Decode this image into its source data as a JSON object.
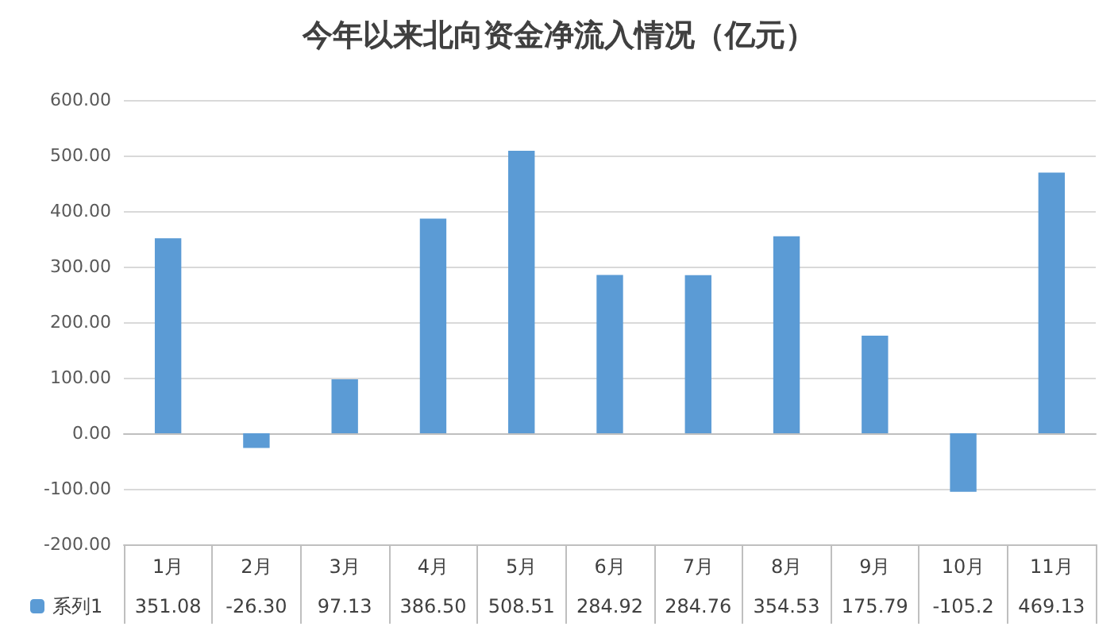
{
  "chart_data": {
    "type": "bar",
    "title": "今年以来北向资金净流入情况（亿元）",
    "categories": [
      "1月",
      "2月",
      "3月",
      "4月",
      "5月",
      "6月",
      "7月",
      "8月",
      "9月",
      "10月",
      "11月"
    ],
    "series": [
      {
        "name": "系列1",
        "color": "#5b9bd5",
        "values": [
          351.08,
          -26.3,
          97.13,
          386.5,
          508.51,
          284.92,
          284.76,
          354.53,
          175.79,
          -105.2,
          469.13
        ],
        "value_labels": [
          "351.08",
          "-26.30",
          "97.13",
          "386.50",
          "508.51",
          "284.92",
          "284.76",
          "354.53",
          "175.79",
          "-105.2",
          "469.13"
        ]
      }
    ],
    "ylim": [
      -200,
      600
    ],
    "yticks": [
      {
        "value": -200,
        "label": "-200.00"
      },
      {
        "value": -100,
        "label": "-100.00"
      },
      {
        "value": 0,
        "label": "0.00"
      },
      {
        "value": 100,
        "label": "100.00"
      },
      {
        "value": 200,
        "label": "200.00"
      },
      {
        "value": 300,
        "label": "300.00"
      },
      {
        "value": 400,
        "label": "400.00"
      },
      {
        "value": 500,
        "label": "500.00"
      },
      {
        "value": 600,
        "label": "600.00"
      }
    ],
    "grid": "y",
    "legend": "bottom left"
  }
}
